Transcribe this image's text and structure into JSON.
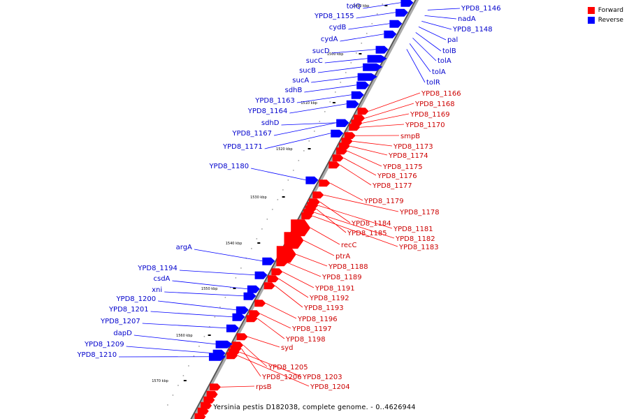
{
  "caption": "Yersinia pestis D182038, complete genome. - 0..4626944",
  "legend": [
    {
      "label": "Forward",
      "color": "#ff0000"
    },
    {
      "label": "Reverse",
      "color": "#0000ff"
    }
  ],
  "ticks": [
    "1490 kbp",
    "1500 kbp",
    "1510 kbp",
    "1520 kbp",
    "1530 kbp",
    "1540 kbp",
    "1550 kbp",
    "1560 kbp",
    "1570 kbp"
  ],
  "reverse_genes": [
    "tolQ",
    "YPD8_1155",
    "cydB",
    "cydA",
    "sucD",
    "sucC",
    "sucB",
    "sucA",
    "sdhB",
    "YPD8_1163",
    "YPD8_1164",
    "sdhD",
    "YPD8_1167",
    "YPD8_1171",
    "YPD8_1180",
    "argA",
    "YPD8_1194",
    "csdA",
    "xni",
    "YPD8_1200",
    "YPD8_1201",
    "YPD8_1207",
    "dapD",
    "YPD8_1209",
    "YPD8_1210"
  ],
  "top_right_genes": [
    "YPD8_1146",
    "nadA",
    "YPD8_1148",
    "pal",
    "tolB",
    "tolA",
    "tolA",
    "tolR"
  ],
  "forward_genes": [
    "YPD8_1166",
    "YPD8_1168",
    "YPD8_1169",
    "YPD8_1170",
    "smpB",
    "YPD8_1173",
    "YPD8_1174",
    "YPD8_1175",
    "YPD8_1176",
    "YPD8_1177",
    "YPD8_1179",
    "YPD8_1178",
    "YPD8_1184",
    "YPD8_1181",
    "YPD8_1185",
    "YPD8_1182",
    "YPD8_1183",
    "recC",
    "ptrA",
    "YPD8_1188",
    "YPD8_1189",
    "YPD8_1191",
    "YPD8_1192",
    "YPD8_1193",
    "YPD8_1196",
    "YPD8_1197",
    "YPD8_1198",
    "syd",
    "YPD8_1205",
    "YPD8_1206",
    "YPD8_1203",
    "YPD8_1204",
    "rpsB"
  ]
}
